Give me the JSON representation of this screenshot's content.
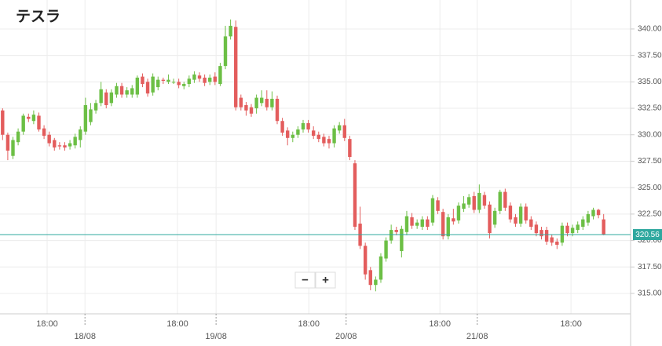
{
  "chart_data": {
    "type": "candlestick",
    "title": "テスラ",
    "up_color": "#6cbf45",
    "down_color": "#e35d5d",
    "price_line_color": "#2fa89f",
    "current_price": 320.56,
    "zoom_controls": [
      "−",
      "+"
    ],
    "ylim": [
      313.07,
      342.74
    ],
    "yticks": [
      {
        "value": 315,
        "label": "315.00"
      },
      {
        "value": 317.5,
        "label": "317.50"
      },
      {
        "value": 320,
        "label": "320.00"
      },
      {
        "value": 322.5,
        "label": "322.50"
      },
      {
        "value": 325,
        "label": "325.00"
      },
      {
        "value": 327.5,
        "label": "327.50"
      },
      {
        "value": 330,
        "label": "330.00"
      },
      {
        "value": 332.5,
        "label": "332.50"
      },
      {
        "value": 335,
        "label": "335.00"
      },
      {
        "value": 337.5,
        "label": "337.50"
      },
      {
        "value": 340,
        "label": "340.00"
      }
    ],
    "xlim": [
      -0.5,
      121.2
    ],
    "xticks": [
      {
        "value": 8.6,
        "label": "18:00"
      },
      {
        "value": 33.75,
        "label": "18:00"
      },
      {
        "value": 59.1,
        "label": "18:00"
      },
      {
        "value": 84.4,
        "label": "18:00"
      },
      {
        "value": 109.7,
        "label": "18:00"
      }
    ],
    "date_ticks": [
      {
        "value": 15.9,
        "label": "18/08"
      },
      {
        "value": 41.2,
        "label": "19/08"
      },
      {
        "value": 66.3,
        "label": "20/08"
      },
      {
        "value": 91.6,
        "label": "21/08"
      }
    ],
    "grid": true,
    "ohlc": [
      [
        332.3,
        332.5,
        329.5,
        330.0
      ],
      [
        330.0,
        330.2,
        327.6,
        328.5
      ],
      [
        328.0,
        329.8,
        327.7,
        329.5
      ],
      [
        329.3,
        330.6,
        329.0,
        330.3
      ],
      [
        330.3,
        332.0,
        330.0,
        331.8
      ],
      [
        331.7,
        332.0,
        331.2,
        331.5
      ],
      [
        331.3,
        332.3,
        331.0,
        331.9
      ],
      [
        331.8,
        332.1,
        330.3,
        330.5
      ],
      [
        330.6,
        330.9,
        329.6,
        329.9
      ],
      [
        330.0,
        330.3,
        328.9,
        329.2
      ],
      [
        329.5,
        329.7,
        328.5,
        328.8
      ],
      [
        329.0,
        329.3,
        328.6,
        328.9
      ],
      [
        329.0,
        329.3,
        328.5,
        328.8
      ],
      [
        328.9,
        329.5,
        328.6,
        329.2
      ],
      [
        329.0,
        330.1,
        328.7,
        329.8
      ],
      [
        329.5,
        330.8,
        328.8,
        330.5
      ],
      [
        330.3,
        333.5,
        330.0,
        332.8
      ],
      [
        331.2,
        333.0,
        330.9,
        332.4
      ],
      [
        332.3,
        333.3,
        332.0,
        333.0
      ],
      [
        333.0,
        335.0,
        332.7,
        334.3
      ],
      [
        334.0,
        334.3,
        332.5,
        332.8
      ],
      [
        333.0,
        334.3,
        332.7,
        334.0
      ],
      [
        333.8,
        334.9,
        333.5,
        334.6
      ],
      [
        334.6,
        334.9,
        333.5,
        333.8
      ],
      [
        333.8,
        334.5,
        333.5,
        334.2
      ],
      [
        333.8,
        334.7,
        333.5,
        334.4
      ],
      [
        333.8,
        335.6,
        333.5,
        335.4
      ],
      [
        335.5,
        335.8,
        334.5,
        334.8
      ],
      [
        335.0,
        335.3,
        333.6,
        333.9
      ],
      [
        334.0,
        335.8,
        333.7,
        335.5
      ],
      [
        334.5,
        335.5,
        334.2,
        335.2
      ],
      [
        335.2,
        335.4,
        334.8,
        335.1
      ],
      [
        335.0,
        335.7,
        334.8,
        335.2
      ],
      [
        335.0,
        335.3,
        334.8,
        335.0
      ],
      [
        335.0,
        335.3,
        334.4,
        334.7
      ],
      [
        334.6,
        335.0,
        334.3,
        334.8
      ],
      [
        334.8,
        335.6,
        334.5,
        335.3
      ],
      [
        335.2,
        336.0,
        334.9,
        335.7
      ],
      [
        335.6,
        335.9,
        335.0,
        335.3
      ],
      [
        335.4,
        335.7,
        334.6,
        334.9
      ],
      [
        335.0,
        335.7,
        334.7,
        335.4
      ],
      [
        335.5,
        335.9,
        334.7,
        335.0
      ],
      [
        334.8,
        336.8,
        334.6,
        336.5
      ],
      [
        336.5,
        340.3,
        336.2,
        339.3
      ],
      [
        339.3,
        340.9,
        339.0,
        340.3
      ],
      [
        340.2,
        340.8,
        332.3,
        332.6
      ],
      [
        333.5,
        333.8,
        332.3,
        332.6
      ],
      [
        332.8,
        333.1,
        331.8,
        332.3
      ],
      [
        332.6,
        332.9,
        331.7,
        332.0
      ],
      [
        332.5,
        333.8,
        332.0,
        333.5
      ],
      [
        333.0,
        334.2,
        332.7,
        333.5
      ],
      [
        333.4,
        334.2,
        332.3,
        332.6
      ],
      [
        332.6,
        334.1,
        332.3,
        333.4
      ],
      [
        333.4,
        333.7,
        331.0,
        331.3
      ],
      [
        331.3,
        331.6,
        329.9,
        330.2
      ],
      [
        330.4,
        330.7,
        329.0,
        329.7
      ],
      [
        329.7,
        330.3,
        329.3,
        330.0
      ],
      [
        330.0,
        330.8,
        329.7,
        330.5
      ],
      [
        330.5,
        331.4,
        330.2,
        331.1
      ],
      [
        331.1,
        331.4,
        330.2,
        330.5
      ],
      [
        330.4,
        330.8,
        329.6,
        329.9
      ],
      [
        330.0,
        330.3,
        329.3,
        329.6
      ],
      [
        329.8,
        330.1,
        328.9,
        329.2
      ],
      [
        329.6,
        329.9,
        328.7,
        329.2
      ],
      [
        329.2,
        330.9,
        328.8,
        330.6
      ],
      [
        330.4,
        331.2,
        330.1,
        330.9
      ],
      [
        330.9,
        331.5,
        329.4,
        329.7
      ],
      [
        329.6,
        329.9,
        327.6,
        327.9
      ],
      [
        327.3,
        327.6,
        321.0,
        321.3
      ],
      [
        321.6,
        323.2,
        319.2,
        319.5
      ],
      [
        319.5,
        319.8,
        316.3,
        316.8
      ],
      [
        317.2,
        317.5,
        315.3,
        315.8
      ],
      [
        315.8,
        316.6,
        315.2,
        316.3
      ],
      [
        316.3,
        318.8,
        316.0,
        318.5
      ],
      [
        318.3,
        320.3,
        318.0,
        320.0
      ],
      [
        320.0,
        321.5,
        319.7,
        321.0
      ],
      [
        321.0,
        321.3,
        320.5,
        320.8
      ],
      [
        319.0,
        321.4,
        318.4,
        321.1
      ],
      [
        320.8,
        322.8,
        320.5,
        322.3
      ],
      [
        322.2,
        322.6,
        321.1,
        321.4
      ],
      [
        321.4,
        322.0,
        321.1,
        321.7
      ],
      [
        321.3,
        322.3,
        321.0,
        322.0
      ],
      [
        322.0,
        322.3,
        321.0,
        321.3
      ],
      [
        321.7,
        324.3,
        321.4,
        324.0
      ],
      [
        323.8,
        324.1,
        322.5,
        322.8
      ],
      [
        322.7,
        323.0,
        320.1,
        320.4
      ],
      [
        320.4,
        322.5,
        320.1,
        322.2
      ],
      [
        322.1,
        323.0,
        321.5,
        321.8
      ],
      [
        321.9,
        323.6,
        321.6,
        323.3
      ],
      [
        323.0,
        324.2,
        322.7,
        323.5
      ],
      [
        323.4,
        324.4,
        323.1,
        324.1
      ],
      [
        324.2,
        324.6,
        322.6,
        322.9
      ],
      [
        322.9,
        325.3,
        322.6,
        324.5
      ],
      [
        324.3,
        324.6,
        323.0,
        323.3
      ],
      [
        323.4,
        323.7,
        320.2,
        320.7
      ],
      [
        321.5,
        323.1,
        321.2,
        322.8
      ],
      [
        322.8,
        324.8,
        322.5,
        324.6
      ],
      [
        324.6,
        324.9,
        322.8,
        323.1
      ],
      [
        323.3,
        323.6,
        321.7,
        322.0
      ],
      [
        322.2,
        322.5,
        321.3,
        321.6
      ],
      [
        321.6,
        323.5,
        321.3,
        323.2
      ],
      [
        323.2,
        323.5,
        321.6,
        321.9
      ],
      [
        322.0,
        322.3,
        321.0,
        321.3
      ],
      [
        321.5,
        321.8,
        320.4,
        320.7
      ],
      [
        321.0,
        321.3,
        320.1,
        320.4
      ],
      [
        321.0,
        321.3,
        319.6,
        319.9
      ],
      [
        320.3,
        320.6,
        319.5,
        319.8
      ],
      [
        319.9,
        320.2,
        319.2,
        319.6
      ],
      [
        319.8,
        321.7,
        319.5,
        321.4
      ],
      [
        321.4,
        321.7,
        320.4,
        320.7
      ],
      [
        320.7,
        321.5,
        320.4,
        321.2
      ],
      [
        321.0,
        321.8,
        320.7,
        321.5
      ],
      [
        321.3,
        322.3,
        321.0,
        322.0
      ],
      [
        321.7,
        322.8,
        321.4,
        322.5
      ],
      [
        322.3,
        323.1,
        322.0,
        322.9
      ],
      [
        322.9,
        323.0,
        322.1,
        322.4
      ],
      [
        322.0,
        322.5,
        320.5,
        320.56
      ]
    ]
  }
}
